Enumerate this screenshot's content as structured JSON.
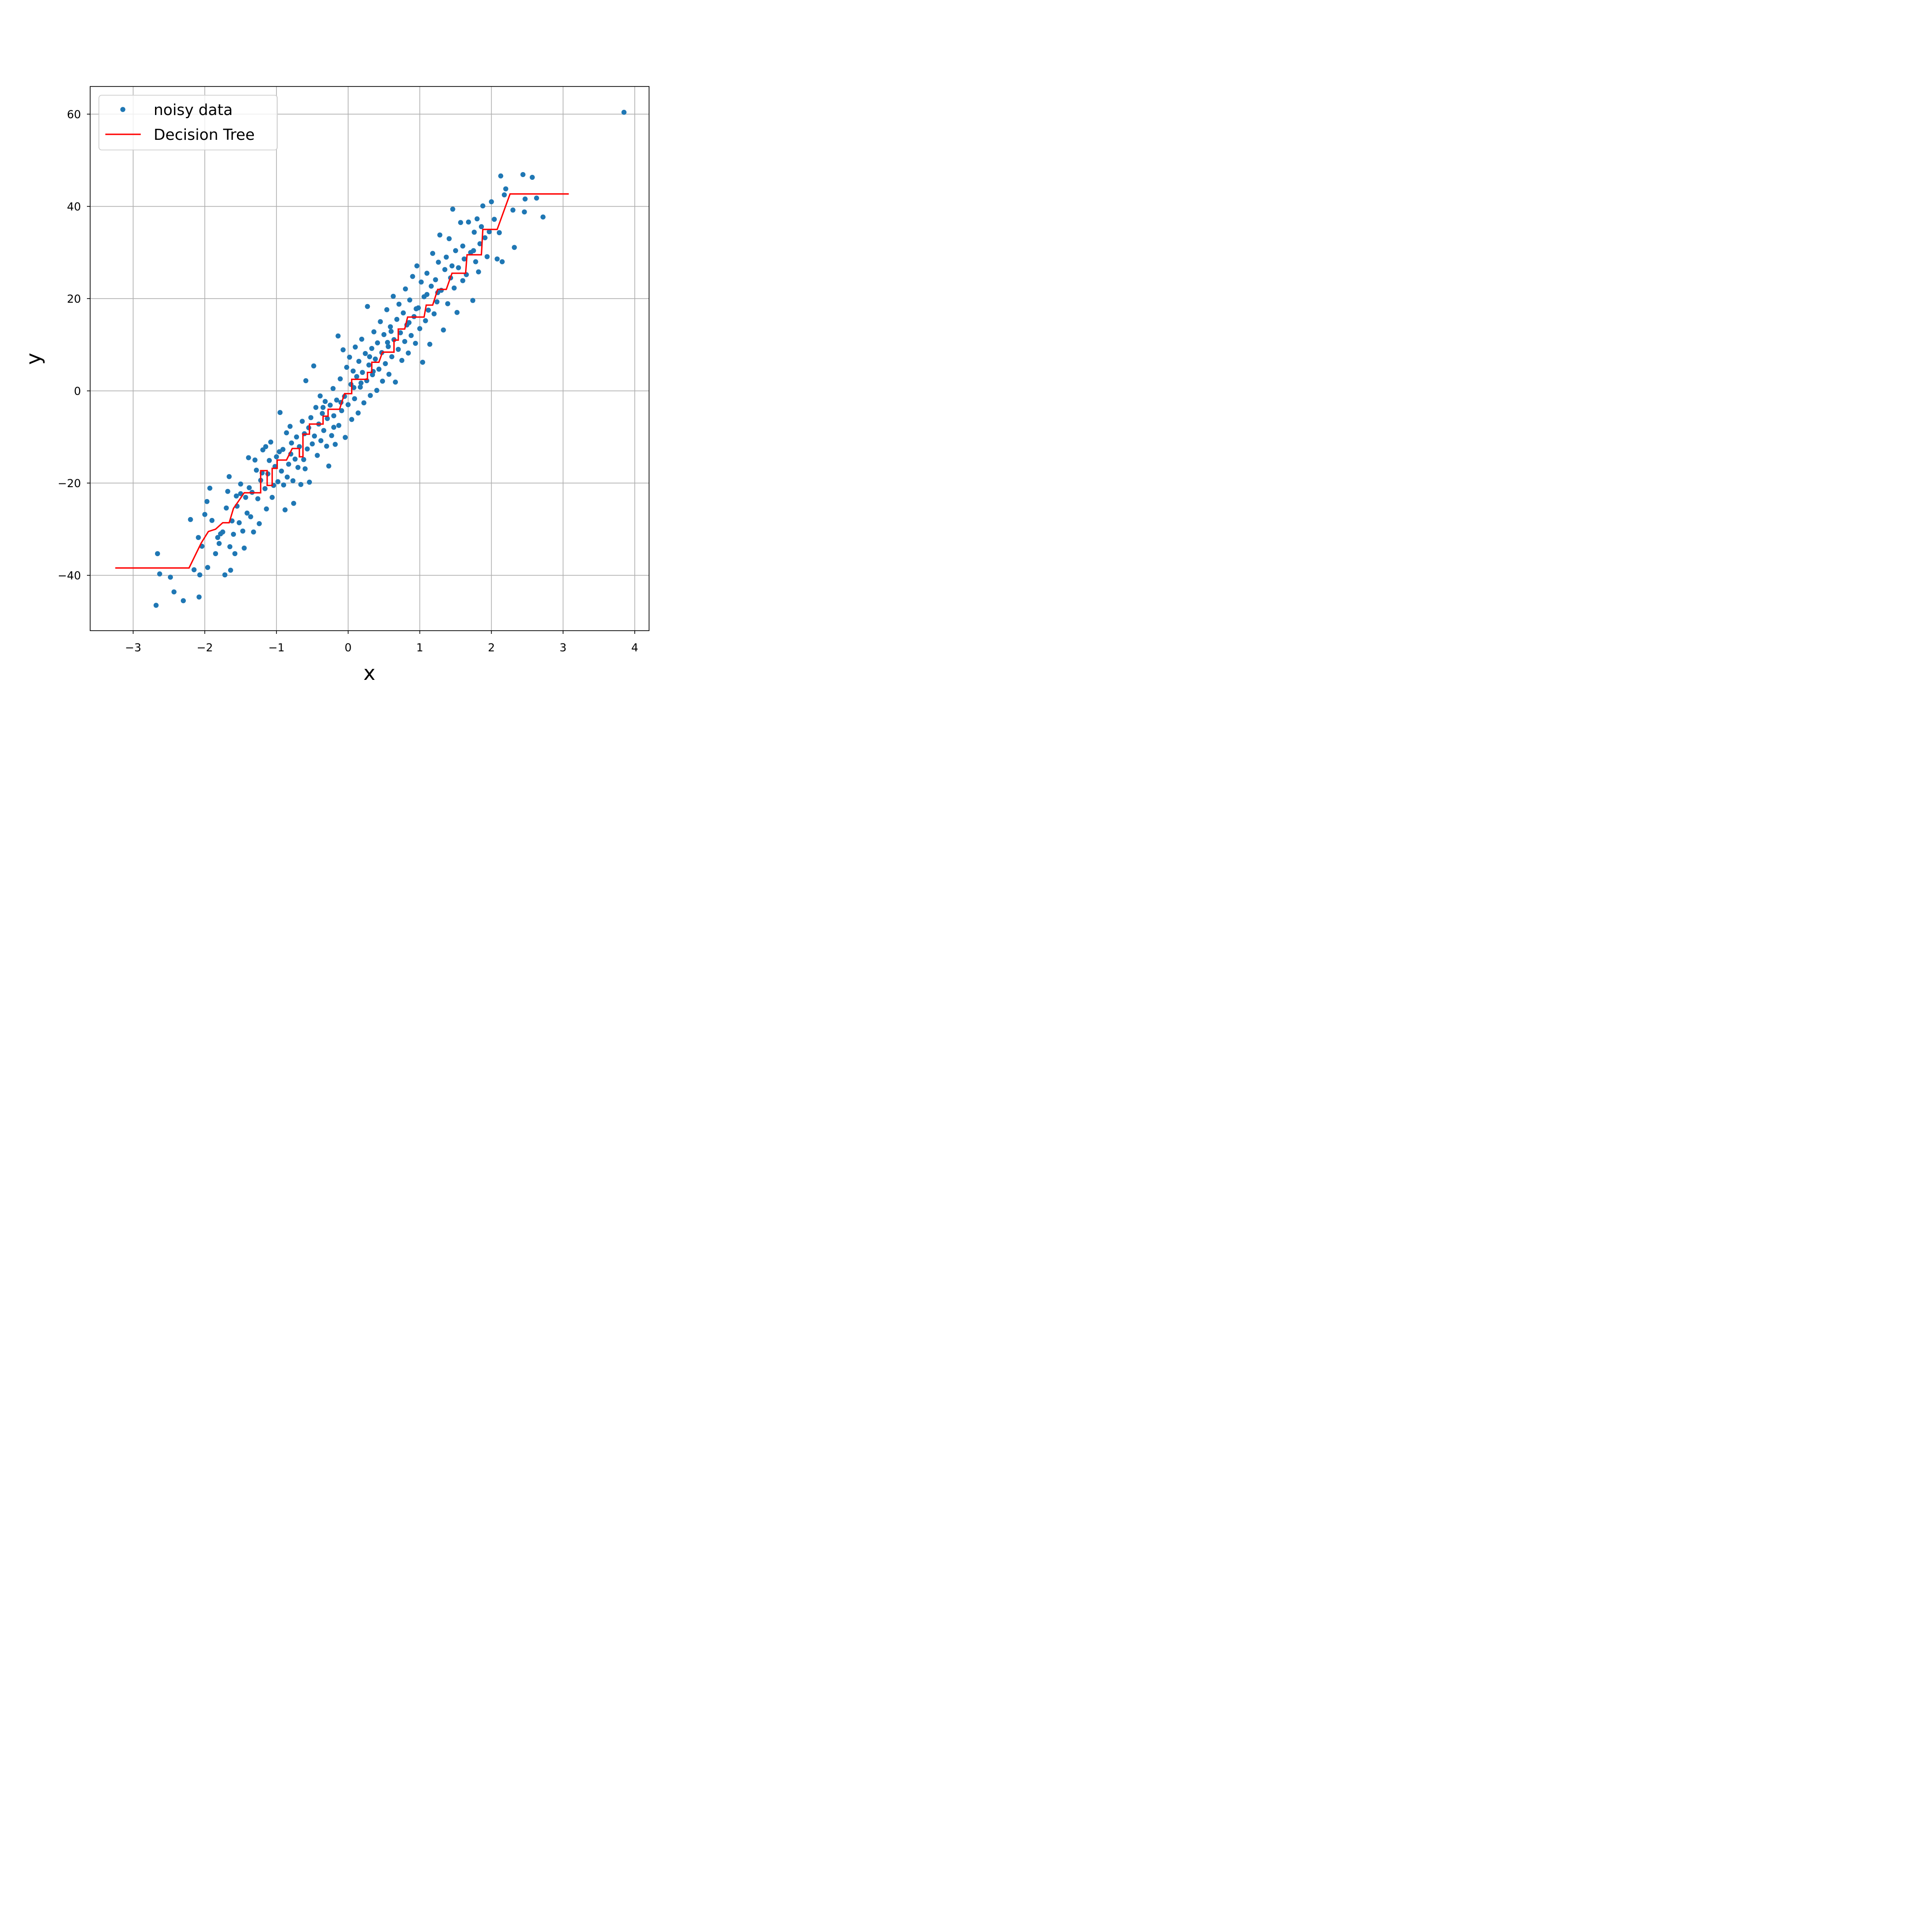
{
  "chart_data": {
    "type": "scatter",
    "xlabel": "x",
    "ylabel": "y",
    "xlim": [
      -3.6,
      4.2
    ],
    "ylim": [
      -52,
      66
    ],
    "xticks": [
      -3,
      -2,
      -1,
      0,
      1,
      2,
      3,
      4
    ],
    "yticks": [
      -40,
      -20,
      0,
      20,
      40,
      60
    ],
    "grid": true,
    "legend": {
      "position": "top-left",
      "entries": [
        "noisy data",
        "Decision Tree"
      ]
    },
    "colors": {
      "scatter": "#1f77b4",
      "line": "#ff0000"
    },
    "series": [
      {
        "name": "noisy data",
        "type": "scatter",
        "points": [
          [
            3.85,
            60.4
          ],
          [
            -2.68,
            -46.5
          ],
          [
            -2.66,
            -35.3
          ],
          [
            -2.63,
            -39.7
          ],
          [
            -2.48,
            -40.4
          ],
          [
            -2.43,
            -43.6
          ],
          [
            -2.3,
            -45.5
          ],
          [
            -2.2,
            -27.9
          ],
          [
            -2.15,
            -38.8
          ],
          [
            -2.09,
            -31.8
          ],
          [
            -2.08,
            -44.7
          ],
          [
            -2.07,
            -39.9
          ],
          [
            -2.04,
            -33.7
          ],
          [
            -2.0,
            -26.8
          ],
          [
            -1.97,
            -24.0
          ],
          [
            -1.96,
            -38.3
          ],
          [
            -1.93,
            -21.1
          ],
          [
            -1.9,
            -28.1
          ],
          [
            -1.85,
            -35.3
          ],
          [
            -1.82,
            -31.8
          ],
          [
            -1.8,
            -33.1
          ],
          [
            -1.78,
            -31.0
          ],
          [
            -1.75,
            -30.6
          ],
          [
            -1.72,
            -39.9
          ],
          [
            -1.7,
            -25.4
          ],
          [
            -1.68,
            -21.8
          ],
          [
            -1.66,
            -18.6
          ],
          [
            -1.65,
            -33.8
          ],
          [
            -1.64,
            -38.9
          ],
          [
            -1.62,
            -28.2
          ],
          [
            -1.6,
            -31.1
          ],
          [
            -1.58,
            -35.3
          ],
          [
            -1.56,
            -22.8
          ],
          [
            -1.55,
            -25.0
          ],
          [
            -1.52,
            -28.6
          ],
          [
            -1.5,
            -20.2
          ],
          [
            -1.47,
            -30.4
          ],
          [
            -1.45,
            -34.1
          ],
          [
            -1.43,
            -23.1
          ],
          [
            -1.41,
            -26.5
          ],
          [
            -1.39,
            -14.5
          ],
          [
            -1.38,
            -21.0
          ],
          [
            -1.36,
            -27.3
          ],
          [
            -1.34,
            -22.0
          ],
          [
            -1.32,
            -30.6
          ],
          [
            -1.3,
            -15.0
          ],
          [
            -1.28,
            -17.2
          ],
          [
            -1.26,
            -23.4
          ],
          [
            -1.24,
            -28.8
          ],
          [
            -1.22,
            -19.4
          ],
          [
            -1.2,
            -17.8
          ],
          [
            -1.19,
            -12.8
          ],
          [
            -1.16,
            -21.2
          ],
          [
            -1.14,
            -25.6
          ],
          [
            -1.12,
            -18.0
          ],
          [
            -1.1,
            -15.1
          ],
          [
            -1.08,
            -11.1
          ],
          [
            -1.06,
            -23.1
          ],
          [
            -1.04,
            -20.5
          ],
          [
            -1.02,
            -16.4
          ],
          [
            -1.0,
            -14.3
          ],
          [
            -0.98,
            -19.7
          ],
          [
            -0.96,
            -13.2
          ],
          [
            -0.95,
            -4.7
          ],
          [
            -0.93,
            -17.4
          ],
          [
            -0.91,
            -12.7
          ],
          [
            -0.9,
            -20.4
          ],
          [
            -0.88,
            -25.8
          ],
          [
            -0.86,
            -9.1
          ],
          [
            -0.85,
            -18.7
          ],
          [
            -0.83,
            -15.9
          ],
          [
            -0.81,
            -7.7
          ],
          [
            -0.79,
            -11.3
          ],
          [
            -0.77,
            -19.5
          ],
          [
            -0.76,
            -24.4
          ],
          [
            -0.74,
            -14.8
          ],
          [
            -0.72,
            -10.0
          ],
          [
            -0.7,
            -16.6
          ],
          [
            -0.68,
            -12.1
          ],
          [
            -0.66,
            -20.3
          ],
          [
            -0.64,
            -6.6
          ],
          [
            -0.62,
            -14.9
          ],
          [
            -0.61,
            -9.3
          ],
          [
            -0.59,
            2.2
          ],
          [
            -0.57,
            -12.6
          ],
          [
            -0.55,
            -8.0
          ],
          [
            -0.54,
            -19.8
          ],
          [
            -0.52,
            -5.8
          ],
          [
            -0.5,
            -11.5
          ],
          [
            -0.48,
            5.4
          ],
          [
            -0.47,
            -9.8
          ],
          [
            -0.45,
            -3.6
          ],
          [
            -0.43,
            -14.0
          ],
          [
            -0.41,
            -7.2
          ],
          [
            -0.39,
            -1.1
          ],
          [
            -0.38,
            -10.8
          ],
          [
            -0.36,
            -4.9
          ],
          [
            -0.34,
            -8.6
          ],
          [
            -0.32,
            -2.3
          ],
          [
            -0.3,
            -12.0
          ],
          [
            -0.29,
            -6.0
          ],
          [
            -0.27,
            -16.3
          ],
          [
            -0.25,
            -3.1
          ],
          [
            -0.23,
            -9.7
          ],
          [
            -0.21,
            0.5
          ],
          [
            -0.2,
            -5.4
          ],
          [
            -0.18,
            -11.6
          ],
          [
            -0.16,
            -2.0
          ],
          [
            -0.14,
            11.9
          ],
          [
            -0.13,
            -7.5
          ],
          [
            -0.11,
            2.6
          ],
          [
            -0.09,
            -4.3
          ],
          [
            -0.07,
            8.9
          ],
          [
            -0.05,
            -1.2
          ],
          [
            -0.04,
            -10.1
          ],
          [
            -0.02,
            5.1
          ],
          [
            0.0,
            -3.0
          ],
          [
            0.02,
            7.3
          ],
          [
            0.04,
            1.4
          ],
          [
            0.05,
            -6.2
          ],
          [
            0.07,
            4.3
          ],
          [
            0.09,
            -1.7
          ],
          [
            0.1,
            9.5
          ],
          [
            0.12,
            3.1
          ],
          [
            0.14,
            -4.8
          ],
          [
            0.15,
            6.4
          ],
          [
            0.17,
            0.8
          ],
          [
            0.19,
            11.2
          ],
          [
            0.2,
            4.0
          ],
          [
            0.22,
            -2.6
          ],
          [
            0.24,
            8.1
          ],
          [
            0.26,
            2.2
          ],
          [
            0.27,
            18.3
          ],
          [
            0.29,
            5.6
          ],
          [
            0.31,
            -1.0
          ],
          [
            0.33,
            9.2
          ],
          [
            0.34,
            3.5
          ],
          [
            0.36,
            12.8
          ],
          [
            0.38,
            6.9
          ],
          [
            0.4,
            0.1
          ],
          [
            0.41,
            10.4
          ],
          [
            0.43,
            4.7
          ],
          [
            0.45,
            15.0
          ],
          [
            0.47,
            8.3
          ],
          [
            0.48,
            2.1
          ],
          [
            0.5,
            12.2
          ],
          [
            0.52,
            5.9
          ],
          [
            0.54,
            17.6
          ],
          [
            0.56,
            9.6
          ],
          [
            0.57,
            3.6
          ],
          [
            0.59,
            13.9
          ],
          [
            0.61,
            7.4
          ],
          [
            0.63,
            20.5
          ],
          [
            0.64,
            11.1
          ],
          [
            0.66,
            1.9
          ],
          [
            0.68,
            15.5
          ],
          [
            0.7,
            9.0
          ],
          [
            0.71,
            18.8
          ],
          [
            0.73,
            12.6
          ],
          [
            0.75,
            6.6
          ],
          [
            0.77,
            16.9
          ],
          [
            0.79,
            10.7
          ],
          [
            0.8,
            22.1
          ],
          [
            0.82,
            14.3
          ],
          [
            0.84,
            8.2
          ],
          [
            0.86,
            19.7
          ],
          [
            0.88,
            12.0
          ],
          [
            0.9,
            24.8
          ],
          [
            0.92,
            16.1
          ],
          [
            0.94,
            10.3
          ],
          [
            0.96,
            27.1
          ],
          [
            0.98,
            18.0
          ],
          [
            1.0,
            13.5
          ],
          [
            1.02,
            23.6
          ],
          [
            1.04,
            6.2
          ],
          [
            1.06,
            20.4
          ],
          [
            1.08,
            15.2
          ],
          [
            1.1,
            25.5
          ],
          [
            1.12,
            17.5
          ],
          [
            1.14,
            10.1
          ],
          [
            1.16,
            22.7
          ],
          [
            1.18,
            29.8
          ],
          [
            1.2,
            16.7
          ],
          [
            1.22,
            24.1
          ],
          [
            1.24,
            19.3
          ],
          [
            1.26,
            27.9
          ],
          [
            1.28,
            33.8
          ],
          [
            1.3,
            21.8
          ],
          [
            1.33,
            13.2
          ],
          [
            1.35,
            26.3
          ],
          [
            1.37,
            29.0
          ],
          [
            1.39,
            18.9
          ],
          [
            1.41,
            33.0
          ],
          [
            1.43,
            24.5
          ],
          [
            1.46,
            39.4
          ],
          [
            1.48,
            22.3
          ],
          [
            1.5,
            30.4
          ],
          [
            1.52,
            17.0
          ],
          [
            1.54,
            26.7
          ],
          [
            1.57,
            36.5
          ],
          [
            1.6,
            23.9
          ],
          [
            1.62,
            28.6
          ],
          [
            1.65,
            25.2
          ],
          [
            1.68,
            36.6
          ],
          [
            1.71,
            30.0
          ],
          [
            1.74,
            19.6
          ],
          [
            1.76,
            34.4
          ],
          [
            1.78,
            28.0
          ],
          [
            1.8,
            37.3
          ],
          [
            1.82,
            25.8
          ],
          [
            1.84,
            31.9
          ],
          [
            1.86,
            35.6
          ],
          [
            1.88,
            40.1
          ],
          [
            1.91,
            33.2
          ],
          [
            1.94,
            29.1
          ],
          [
            1.97,
            34.5
          ],
          [
            2.0,
            41.0
          ],
          [
            2.04,
            37.2
          ],
          [
            2.08,
            28.6
          ],
          [
            2.11,
            34.3
          ],
          [
            2.13,
            46.6
          ],
          [
            2.15,
            28.0
          ],
          [
            2.18,
            42.5
          ],
          [
            2.2,
            43.8
          ],
          [
            2.3,
            39.2
          ],
          [
            2.32,
            31.1
          ],
          [
            2.44,
            46.9
          ],
          [
            2.46,
            38.8
          ],
          [
            2.47,
            41.6
          ],
          [
            2.57,
            46.3
          ],
          [
            2.63,
            41.8
          ],
          [
            2.72,
            37.7
          ],
          [
            -1.15,
            -12.1
          ],
          [
            -0.6,
            -16.9
          ],
          [
            -0.35,
            -3.6
          ],
          [
            0.08,
            0.7
          ],
          [
            0.3,
            7.4
          ],
          [
            0.55,
            10.5
          ],
          [
            0.85,
            14.8
          ],
          [
            1.1,
            20.9
          ],
          [
            1.45,
            27.1
          ],
          [
            1.75,
            30.4
          ],
          [
            -1.5,
            -22.3
          ],
          [
            -0.8,
            -13.7
          ],
          [
            -0.2,
            -7.9
          ],
          [
            0.18,
            1.7
          ],
          [
            0.6,
            12.9
          ],
          [
            0.95,
            17.8
          ],
          [
            1.25,
            21.3
          ],
          [
            1.6,
            31.4
          ],
          [
            -0.1,
            -2.5
          ],
          [
            0.35,
            4.2
          ]
        ]
      },
      {
        "name": "Decision Tree",
        "type": "line",
        "points": [
          [
            -3.25,
            -38.4
          ],
          [
            -2.22,
            -38.4
          ],
          [
            -2.05,
            -33.0
          ],
          [
            -1.95,
            -30.5
          ],
          [
            -1.85,
            -30.0
          ],
          [
            -1.75,
            -28.6
          ],
          [
            -1.66,
            -28.6
          ],
          [
            -1.6,
            -25.5
          ],
          [
            -1.52,
            -23.7
          ],
          [
            -1.45,
            -22.1
          ],
          [
            -1.22,
            -22.1
          ],
          [
            -1.22,
            -17.3
          ],
          [
            -1.13,
            -17.3
          ],
          [
            -1.13,
            -20.5
          ],
          [
            -1.06,
            -20.5
          ],
          [
            -1.06,
            -16.8
          ],
          [
            -0.99,
            -16.8
          ],
          [
            -0.99,
            -15.0
          ],
          [
            -0.86,
            -15.0
          ],
          [
            -0.78,
            -12.5
          ],
          [
            -0.68,
            -12.5
          ],
          [
            -0.68,
            -14.3
          ],
          [
            -0.63,
            -14.3
          ],
          [
            -0.63,
            -9.4
          ],
          [
            -0.54,
            -9.4
          ],
          [
            -0.54,
            -7.2
          ],
          [
            -0.35,
            -7.2
          ],
          [
            -0.35,
            -5.5
          ],
          [
            -0.28,
            -5.5
          ],
          [
            -0.28,
            -4.0
          ],
          [
            -0.12,
            -4.0
          ],
          [
            -0.05,
            -0.6
          ],
          [
            0.05,
            -0.6
          ],
          [
            0.05,
            2.5
          ],
          [
            0.27,
            2.5
          ],
          [
            0.27,
            4.0
          ],
          [
            0.33,
            4.0
          ],
          [
            0.33,
            6.2
          ],
          [
            0.43,
            6.2
          ],
          [
            0.48,
            8.4
          ],
          [
            0.64,
            8.4
          ],
          [
            0.64,
            11.0
          ],
          [
            0.7,
            11.0
          ],
          [
            0.7,
            13.4
          ],
          [
            0.79,
            13.4
          ],
          [
            0.83,
            16.0
          ],
          [
            1.06,
            16.0
          ],
          [
            1.09,
            18.6
          ],
          [
            1.18,
            18.6
          ],
          [
            1.25,
            22.0
          ],
          [
            1.37,
            22.0
          ],
          [
            1.45,
            25.5
          ],
          [
            1.64,
            25.5
          ],
          [
            1.66,
            29.5
          ],
          [
            1.86,
            29.5
          ],
          [
            1.88,
            35.0
          ],
          [
            2.08,
            35.0
          ],
          [
            2.26,
            42.7
          ],
          [
            3.08,
            42.7
          ]
        ]
      }
    ]
  }
}
